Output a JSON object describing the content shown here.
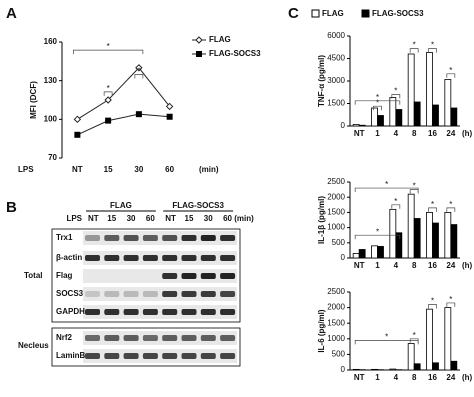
{
  "panel_labels": [
    "A",
    "B",
    "C"
  ],
  "chart_data": [
    {
      "type": "line",
      "y_label": "MFI (DCF)",
      "x_label": "LPS",
      "x_unit": "(min)",
      "categories": [
        "NT",
        "15",
        "30",
        "60"
      ],
      "ylim": [
        70,
        160
      ],
      "yticks": [
        70,
        100,
        130,
        160
      ],
      "series": [
        {
          "name": "FLAG",
          "color": "#ffffff",
          "values": [
            100,
            115,
            140,
            110
          ]
        },
        {
          "name": "FLAG-SOCS3",
          "color": "#000000",
          "values": [
            88,
            99,
            104,
            102
          ]
        }
      ],
      "annotations": [
        "*",
        "*",
        "*"
      ]
    },
    {
      "type": "bar",
      "y_label": "TNF-α (pg/ml)",
      "x_unit": "(h)",
      "categories": [
        "NT",
        "1",
        "4",
        "8",
        "16",
        "24"
      ],
      "ylim": [
        0,
        6000
      ],
      "yticks": [
        0,
        1500,
        3000,
        4500,
        6000
      ],
      "series": [
        {
          "name": "FLAG",
          "color": "#ffffff",
          "values": [
            100,
            1200,
            1900,
            4800,
            4900,
            3100
          ]
        },
        {
          "name": "FLAG-SOCS3",
          "color": "#000000",
          "values": [
            50,
            700,
            1100,
            1600,
            1400,
            1200
          ]
        }
      ],
      "annotations": [
        "*",
        "*",
        "*",
        "*",
        "*",
        "*"
      ]
    },
    {
      "type": "bar",
      "y_label": "IL-1β (pg/ml)",
      "x_unit": "(h)",
      "categories": [
        "NT",
        "1",
        "4",
        "8",
        "16",
        "24"
      ],
      "ylim": [
        0,
        2500
      ],
      "yticks": [
        0,
        500,
        1000,
        1500,
        2000,
        2500
      ],
      "series": [
        {
          "color": "#ffffff",
          "values": [
            150,
            400,
            1600,
            2100,
            1500,
            1500
          ]
        },
        {
          "color": "#000000",
          "values": [
            280,
            380,
            830,
            1300,
            1150,
            1100
          ]
        }
      ],
      "annotations": [
        "*",
        "*",
        "*",
        "*",
        "*",
        "*"
      ]
    },
    {
      "type": "bar",
      "y_label": "IL-6 (pg/ml)",
      "x_unit": "(h)",
      "categories": [
        "NT",
        "1",
        "4",
        "8",
        "16",
        "24"
      ],
      "ylim": [
        0,
        2500
      ],
      "yticks": [
        0,
        500,
        1000,
        1500,
        2000,
        2500
      ],
      "series": [
        {
          "color": "#ffffff",
          "values": [
            20,
            20,
            30,
            850,
            1950,
            2000
          ]
        },
        {
          "color": "#000000",
          "values": [
            10,
            10,
            10,
            200,
            230,
            280
          ]
        }
      ],
      "annotations": [
        "*",
        "*",
        "*",
        "*"
      ]
    }
  ],
  "blot": {
    "groups": [
      "FLAG",
      "FLAG-SOCS3"
    ],
    "lps_label": "LPS",
    "lanes": [
      "NT",
      "15",
      "30",
      "60",
      "NT",
      "15",
      "30",
      "60 (min)"
    ],
    "rows": [
      "Trx1",
      "β-actin",
      "Flag",
      "SOCS3",
      "GAPDH",
      "Nrf2",
      "LaminB"
    ],
    "sections": [
      "Total",
      "Necleus"
    ]
  }
}
